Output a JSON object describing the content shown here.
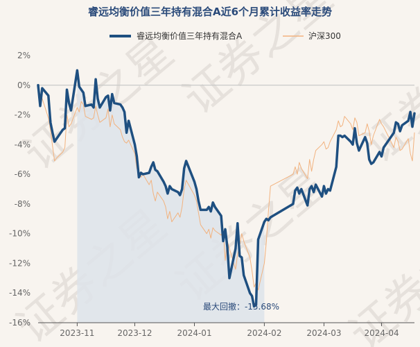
{
  "chart_data": {
    "type": "line",
    "title": "睿远均衡价值三年持有混合A近6个月累计收益率走势",
    "watermark": "证券之星",
    "colors": {
      "fund": "#1e4f80",
      "index": "#f2b27e",
      "zero_line": "#c8c8c8",
      "drawdown_fill": "#dde3ea"
    },
    "legend_position": "top",
    "ylim": [
      -16,
      2
    ],
    "y_ticks": [
      "2%",
      "0%",
      "-2%",
      "-4%",
      "-6%",
      "-8%",
      "-10%",
      "-12%",
      "-14%",
      "-16%"
    ],
    "x_ticks": [
      "2023-11",
      "2023-12",
      "2024-01",
      "2024-02",
      "2024-03",
      "2024-04"
    ],
    "max_drawdown_label": "最大回撤：-15.68%",
    "drawdown_range": {
      "start": "2023-11-06",
      "end": "2024-02-05"
    },
    "series": [
      {
        "name": "睿远均衡价值三年持有混合A",
        "color": "#1e4f80",
        "points": [
          [
            "2023-10-18",
            0.0
          ],
          [
            "2023-10-19",
            -1.4
          ],
          [
            "2023-10-20",
            -0.2
          ],
          [
            "2023-10-23",
            -0.7
          ],
          [
            "2023-10-24",
            -2.5
          ],
          [
            "2023-10-25",
            -3.2
          ],
          [
            "2023-10-26",
            -3.8
          ],
          [
            "2023-10-27",
            -3.6
          ],
          [
            "2023-10-30",
            -3.0
          ],
          [
            "2023-10-31",
            -2.9
          ],
          [
            "2023-11-01",
            -0.3
          ],
          [
            "2023-11-02",
            -1.2
          ],
          [
            "2023-11-03",
            -1.7
          ],
          [
            "2023-11-06",
            1.0
          ],
          [
            "2023-11-07",
            -0.1
          ],
          [
            "2023-11-08",
            -0.3
          ],
          [
            "2023-11-09",
            -0.5
          ],
          [
            "2023-11-10",
            -1.4
          ],
          [
            "2023-11-13",
            -1.3
          ],
          [
            "2023-11-14",
            -1.5
          ],
          [
            "2023-11-15",
            0.4
          ],
          [
            "2023-11-16",
            -0.9
          ],
          [
            "2023-11-17",
            -1.5
          ],
          [
            "2023-11-20",
            -0.8
          ],
          [
            "2023-11-21",
            -0.7
          ],
          [
            "2023-11-22",
            -1.7
          ],
          [
            "2023-11-23",
            -0.6
          ],
          [
            "2023-11-24",
            -1.2
          ],
          [
            "2023-11-27",
            -1.3
          ],
          [
            "2023-11-28",
            -1.5
          ],
          [
            "2023-11-29",
            -1.8
          ],
          [
            "2023-11-30",
            -3.2
          ],
          [
            "2023-12-01",
            -2.4
          ],
          [
            "2023-12-04",
            -4.0
          ],
          [
            "2023-12-05",
            -4.8
          ],
          [
            "2023-12-06",
            -6.2
          ],
          [
            "2023-12-07",
            -5.9
          ],
          [
            "2023-12-08",
            -6.0
          ],
          [
            "2023-12-11",
            -5.9
          ],
          [
            "2023-12-12",
            -5.5
          ],
          [
            "2023-12-13",
            -5.2
          ],
          [
            "2023-12-14",
            -5.7
          ],
          [
            "2023-12-15",
            -5.8
          ],
          [
            "2023-12-18",
            -6.5
          ],
          [
            "2023-12-19",
            -6.8
          ],
          [
            "2023-12-20",
            -7.3
          ],
          [
            "2023-12-21",
            -6.8
          ],
          [
            "2023-12-22",
            -7.0
          ],
          [
            "2023-12-25",
            -7.2
          ],
          [
            "2023-12-26",
            -7.4
          ],
          [
            "2023-12-27",
            -7.0
          ],
          [
            "2023-12-28",
            -5.6
          ],
          [
            "2023-12-29",
            -5.1
          ],
          [
            "2024-01-02",
            -6.5
          ],
          [
            "2024-01-03",
            -7.0
          ],
          [
            "2024-01-04",
            -7.8
          ],
          [
            "2024-01-05",
            -8.4
          ],
          [
            "2024-01-08",
            -8.4
          ],
          [
            "2024-01-09",
            -8.2
          ],
          [
            "2024-01-10",
            -8.5
          ],
          [
            "2024-01-11",
            -7.9
          ],
          [
            "2024-01-12",
            -8.2
          ],
          [
            "2024-01-15",
            -8.8
          ],
          [
            "2024-01-16",
            -10.5
          ],
          [
            "2024-01-17",
            -9.7
          ],
          [
            "2024-01-18",
            -10.9
          ],
          [
            "2024-01-19",
            -13.0
          ],
          [
            "2024-01-22",
            -11.0
          ],
          [
            "2024-01-23",
            -9.3
          ],
          [
            "2024-01-24",
            -11.5
          ],
          [
            "2024-01-25",
            -11.6
          ],
          [
            "2024-01-26",
            -12.8
          ],
          [
            "2024-01-29",
            -14.0
          ],
          [
            "2024-01-30",
            -14.2
          ],
          [
            "2024-01-31",
            -14.9
          ],
          [
            "2024-02-01",
            -14.8
          ],
          [
            "2024-02-02",
            -10.4
          ],
          [
            "2024-02-05",
            -9.2
          ],
          [
            "2024-02-06",
            -9.0
          ],
          [
            "2024-02-07",
            -9.1
          ],
          [
            "2024-02-08",
            -8.9
          ],
          [
            "2024-02-19",
            -8.0
          ],
          [
            "2024-02-20",
            -7.1
          ],
          [
            "2024-02-21",
            -6.9
          ],
          [
            "2024-02-22",
            -7.3
          ],
          [
            "2024-02-23",
            -7.0
          ],
          [
            "2024-02-26",
            -8.1
          ],
          [
            "2024-02-27",
            -7.0
          ],
          [
            "2024-02-28",
            -6.8
          ],
          [
            "2024-02-29",
            -7.2
          ],
          [
            "2024-03-01",
            -6.7
          ],
          [
            "2024-03-04",
            -7.5
          ],
          [
            "2024-03-05",
            -6.8
          ],
          [
            "2024-03-06",
            -7.3
          ],
          [
            "2024-03-07",
            -7.0
          ],
          [
            "2024-03-08",
            -7.1
          ],
          [
            "2024-03-11",
            -5.5
          ],
          [
            "2024-03-12",
            -3.4
          ],
          [
            "2024-03-13",
            -3.4
          ],
          [
            "2024-03-14",
            -3.5
          ],
          [
            "2024-03-15",
            -3.4
          ],
          [
            "2024-03-18",
            -3.8
          ],
          [
            "2024-03-19",
            -4.0
          ],
          [
            "2024-03-20",
            -2.9
          ],
          [
            "2024-03-21",
            -3.9
          ],
          [
            "2024-03-22",
            -4.4
          ],
          [
            "2024-03-25",
            -3.5
          ],
          [
            "2024-03-26",
            -3.9
          ],
          [
            "2024-03-27",
            -5.0
          ],
          [
            "2024-03-28",
            -5.3
          ],
          [
            "2024-03-29",
            -5.2
          ],
          [
            "2024-04-01",
            -4.5
          ],
          [
            "2024-04-02",
            -4.8
          ],
          [
            "2024-04-03",
            -4.2
          ],
          [
            "2024-04-08",
            -3.2
          ],
          [
            "2024-04-09",
            -2.5
          ],
          [
            "2024-04-10",
            -2.6
          ],
          [
            "2024-04-11",
            -3.1
          ],
          [
            "2024-04-12",
            -2.7
          ],
          [
            "2024-04-15",
            -2.4
          ],
          [
            "2024-04-16",
            -1.8
          ],
          [
            "2024-04-17",
            -2.8
          ],
          [
            "2024-04-18",
            -1.9
          ]
        ]
      },
      {
        "name": "沪深300",
        "color": "#f2b27e",
        "points": [
          [
            "2023-10-18",
            0.0
          ],
          [
            "2023-10-19",
            -0.7
          ],
          [
            "2023-10-20",
            -0.9
          ],
          [
            "2023-10-23",
            -2.2
          ],
          [
            "2023-10-24",
            -3.0
          ],
          [
            "2023-10-25",
            -4.1
          ],
          [
            "2023-10-26",
            -5.1
          ],
          [
            "2023-10-27",
            -4.9
          ],
          [
            "2023-10-30",
            -4.5
          ],
          [
            "2023-10-31",
            -4.2
          ],
          [
            "2023-11-01",
            -2.0
          ],
          [
            "2023-11-02",
            -2.8
          ],
          [
            "2023-11-03",
            -2.6
          ],
          [
            "2023-11-06",
            -1.5
          ],
          [
            "2023-11-07",
            -1.8
          ],
          [
            "2023-11-08",
            -1.1
          ],
          [
            "2023-11-09",
            -1.3
          ],
          [
            "2023-11-10",
            -2.1
          ],
          [
            "2023-11-13",
            -2.3
          ],
          [
            "2023-11-14",
            -2.2
          ],
          [
            "2023-11-15",
            -1.4
          ],
          [
            "2023-11-16",
            -2.0
          ],
          [
            "2023-11-17",
            -2.5
          ],
          [
            "2023-11-20",
            -2.2
          ],
          [
            "2023-11-21",
            -1.6
          ],
          [
            "2023-11-22",
            -2.8
          ],
          [
            "2023-11-23",
            -2.0
          ],
          [
            "2023-11-24",
            -2.6
          ],
          [
            "2023-11-27",
            -3.0
          ],
          [
            "2023-11-28",
            -3.5
          ],
          [
            "2023-11-29",
            -3.8
          ],
          [
            "2023-11-30",
            -3.9
          ],
          [
            "2023-12-01",
            -3.7
          ],
          [
            "2023-12-04",
            -4.6
          ],
          [
            "2023-12-05",
            -5.6
          ],
          [
            "2023-12-06",
            -5.9
          ],
          [
            "2023-12-07",
            -6.2
          ],
          [
            "2023-12-08",
            -6.0
          ],
          [
            "2023-12-11",
            -6.7
          ],
          [
            "2023-12-12",
            -6.4
          ],
          [
            "2023-12-13",
            -7.3
          ],
          [
            "2023-12-14",
            -7.8
          ],
          [
            "2023-12-15",
            -7.2
          ],
          [
            "2023-12-18",
            -7.8
          ],
          [
            "2023-12-19",
            -8.2
          ],
          [
            "2023-12-20",
            -9.0
          ],
          [
            "2023-12-21",
            -8.5
          ],
          [
            "2023-12-22",
            -9.2
          ],
          [
            "2023-12-25",
            -8.6
          ],
          [
            "2023-12-26",
            -8.9
          ],
          [
            "2023-12-27",
            -8.2
          ],
          [
            "2023-12-28",
            -7.0
          ],
          [
            "2023-12-29",
            -6.4
          ],
          [
            "2024-01-02",
            -7.4
          ],
          [
            "2024-01-03",
            -7.8
          ],
          [
            "2024-01-04",
            -8.6
          ],
          [
            "2024-01-05",
            -9.4
          ],
          [
            "2024-01-08",
            -10.0
          ],
          [
            "2024-01-09",
            -9.7
          ],
          [
            "2024-01-10",
            -10.3
          ],
          [
            "2024-01-11",
            -9.6
          ],
          [
            "2024-01-12",
            -9.8
          ],
          [
            "2024-01-15",
            -10.1
          ],
          [
            "2024-01-16",
            -9.7
          ],
          [
            "2024-01-17",
            -11.8
          ],
          [
            "2024-01-18",
            -10.5
          ],
          [
            "2024-01-19",
            -11.0
          ],
          [
            "2024-01-22",
            -12.4
          ],
          [
            "2024-01-23",
            -11.4
          ],
          [
            "2024-01-24",
            -10.8
          ],
          [
            "2024-01-25",
            -10.0
          ],
          [
            "2024-01-26",
            -10.5
          ],
          [
            "2024-01-29",
            -11.6
          ],
          [
            "2024-01-30",
            -12.5
          ],
          [
            "2024-01-31",
            -13.6
          ],
          [
            "2024-02-01",
            -13.3
          ],
          [
            "2024-02-02",
            -13.8
          ],
          [
            "2024-02-05",
            -12.0
          ],
          [
            "2024-02-06",
            -10.5
          ],
          [
            "2024-02-07",
            -8.5
          ],
          [
            "2024-02-08",
            -6.8
          ],
          [
            "2024-02-19",
            -6.0
          ],
          [
            "2024-02-20",
            -5.5
          ],
          [
            "2024-02-21",
            -6.0
          ],
          [
            "2024-02-22",
            -5.2
          ],
          [
            "2024-02-23",
            -5.6
          ],
          [
            "2024-02-26",
            -6.3
          ],
          [
            "2024-02-27",
            -5.0
          ],
          [
            "2024-02-28",
            -5.8
          ],
          [
            "2024-02-29",
            -5.0
          ],
          [
            "2024-03-01",
            -4.4
          ],
          [
            "2024-03-04",
            -4.0
          ],
          [
            "2024-03-05",
            -3.8
          ],
          [
            "2024-03-06",
            -4.3
          ],
          [
            "2024-03-07",
            -4.2
          ],
          [
            "2024-03-08",
            -3.8
          ],
          [
            "2024-03-11",
            -3.0
          ],
          [
            "2024-03-12",
            -2.4
          ],
          [
            "2024-03-13",
            -2.8
          ],
          [
            "2024-03-14",
            -2.7
          ],
          [
            "2024-03-15",
            -2.1
          ],
          [
            "2024-03-18",
            -2.6
          ],
          [
            "2024-03-19",
            -3.0
          ],
          [
            "2024-03-20",
            -2.2
          ],
          [
            "2024-03-21",
            -2.5
          ],
          [
            "2024-03-22",
            -3.4
          ],
          [
            "2024-03-25",
            -3.2
          ],
          [
            "2024-03-26",
            -2.6
          ],
          [
            "2024-03-27",
            -3.1
          ],
          [
            "2024-03-28",
            -4.0
          ],
          [
            "2024-03-29",
            -3.4
          ],
          [
            "2024-04-01",
            -2.3
          ],
          [
            "2024-04-02",
            -2.6
          ],
          [
            "2024-04-03",
            -2.8
          ],
          [
            "2024-04-08",
            -4.2
          ],
          [
            "2024-04-09",
            -3.5
          ],
          [
            "2024-04-10",
            -3.8
          ],
          [
            "2024-04-11",
            -4.4
          ],
          [
            "2024-04-12",
            -4.3
          ],
          [
            "2024-04-15",
            -3.6
          ],
          [
            "2024-04-16",
            -4.6
          ],
          [
            "2024-04-17",
            -5.1
          ],
          [
            "2024-04-18",
            -3.2
          ]
        ]
      }
    ]
  }
}
